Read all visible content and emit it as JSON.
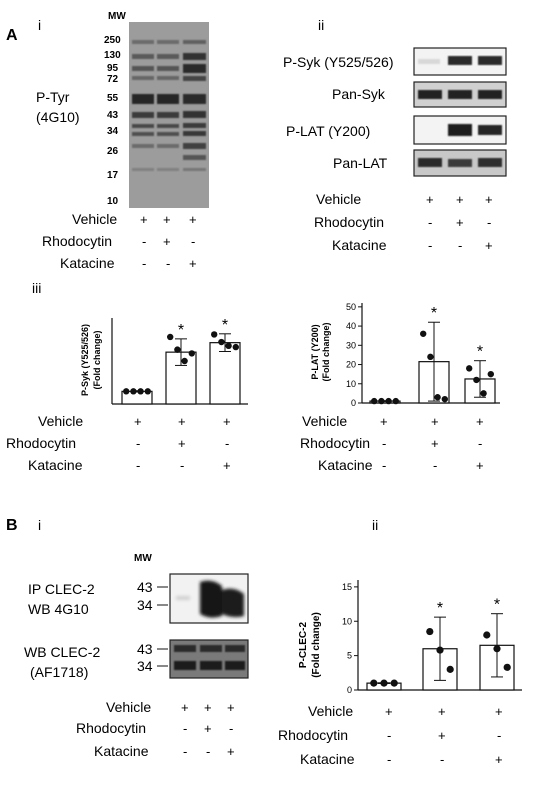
{
  "panelA": {
    "label": "A",
    "i": {
      "numeral": "i",
      "mw_title": "MW",
      "mw_markers": [
        "250",
        "130",
        "95",
        "72",
        "55",
        "43",
        "34",
        "26",
        "17",
        "10"
      ],
      "blot_label_1": "P-Tyr",
      "blot_label_2": "(4G10)",
      "conditions": [
        {
          "name": "Vehicle",
          "signs": [
            "+",
            "+",
            "+"
          ]
        },
        {
          "name": "Rhodocytin",
          "signs": [
            "-",
            "+",
            "-"
          ]
        },
        {
          "name": "Katacine",
          "signs": [
            "-",
            "-",
            "+"
          ]
        }
      ]
    },
    "ii": {
      "numeral": "ii",
      "blots": [
        "P-Syk (Y525/526)",
        "Pan-Syk",
        "P-LAT (Y200)",
        "Pan-LAT"
      ],
      "conditions": [
        {
          "name": "Vehicle",
          "signs": [
            "+",
            "+",
            "+"
          ]
        },
        {
          "name": "Rhodocytin",
          "signs": [
            "-",
            "+",
            "-"
          ]
        },
        {
          "name": "Katacine",
          "signs": [
            "-",
            "-",
            "+"
          ]
        }
      ]
    },
    "iii": {
      "numeral": "iii",
      "conditions": [
        {
          "name": "Vehicle",
          "signs": [
            "+",
            "+",
            "+"
          ]
        },
        {
          "name": "Rhodocytin",
          "signs": [
            "-",
            "+",
            "-"
          ]
        },
        {
          "name": "Katacine",
          "signs": [
            "-",
            "-",
            "+"
          ]
        }
      ]
    },
    "iv": {
      "conditions": [
        {
          "name": "Vehicle",
          "signs": [
            "+",
            "+",
            "+"
          ]
        },
        {
          "name": "Rhodocytin",
          "signs": [
            "-",
            "+",
            "-"
          ]
        },
        {
          "name": "Katacine",
          "signs": [
            "-",
            "-",
            "+"
          ]
        }
      ]
    }
  },
  "panelB": {
    "label": "B",
    "i": {
      "numeral": "i",
      "mw_title": "MW",
      "blot1_label_1": "IP CLEC-2",
      "blot1_label_2": "WB 4G10",
      "blot2_label_1": "WB CLEC-2",
      "blot2_label_2": "(AF1718)",
      "markers_top": [
        "43",
        "34"
      ],
      "markers_bottom": [
        "43",
        "34"
      ],
      "conditions": [
        {
          "name": "Vehicle",
          "signs": [
            "+",
            "+",
            "+"
          ]
        },
        {
          "name": "Rhodocytin",
          "signs": [
            "-",
            "+",
            "-"
          ]
        },
        {
          "name": "Katacine",
          "signs": [
            "-",
            "-",
            "+"
          ]
        }
      ]
    },
    "ii": {
      "numeral": "ii",
      "conditions": [
        {
          "name": "Vehicle",
          "signs": [
            "+",
            "+",
            "+"
          ]
        },
        {
          "name": "Rhodocytin",
          "signs": [
            "-",
            "+",
            "-"
          ]
        },
        {
          "name": "Katacine",
          "signs": [
            "-",
            "-",
            "+"
          ]
        }
      ]
    }
  },
  "chart_data": [
    {
      "type": "bar",
      "categories": [
        "Vehicle",
        "Rhodocytin",
        "Katacine"
      ],
      "values": [
        1.0,
        4.1,
        4.85
      ],
      "errors": [
        0.05,
        1.05,
        0.7
      ],
      "points": [
        [
          1.0,
          1.0,
          1.0,
          1.0
        ],
        [
          5.3,
          4.3,
          3.4,
          4.0
        ],
        [
          5.5,
          4.9,
          4.6,
          4.5
        ]
      ],
      "significance": [
        "",
        "*",
        "*"
      ],
      "ylabel_1": "P-Syk (Y525/526)",
      "ylabel_2": "(Fold change)",
      "yticks": [],
      "ylim": [
        0,
        6.8
      ],
      "grid": false,
      "legend": "none"
    },
    {
      "type": "bar",
      "categories": [
        "Vehicle",
        "Rhodocytin",
        "Katacine"
      ],
      "values": [
        1.0,
        21.5,
        12.5
      ],
      "errors": [
        0.2,
        20.5,
        9.5
      ],
      "points": [
        [
          1.0,
          1.0,
          1.0,
          1.0
        ],
        [
          36.0,
          24.0,
          3.0,
          2.0
        ],
        [
          18.0,
          12.0,
          5.0,
          15.0
        ]
      ],
      "significance": [
        "",
        "*",
        "*"
      ],
      "ylabel_1": "P-LAT (Y200)",
      "ylabel_2": "(Fold change)",
      "yticks": [
        "0",
        "10",
        "20",
        "30",
        "40",
        "50"
      ],
      "ylim": [
        0,
        52
      ],
      "grid": false,
      "legend": "none"
    },
    {
      "type": "bar",
      "categories": [
        "Vehicle",
        "Rhodocytin",
        "Katacine"
      ],
      "values": [
        1.0,
        6.0,
        6.5
      ],
      "errors": [
        0.05,
        4.6,
        4.6
      ],
      "points": [
        [
          1.0,
          1.0,
          1.0
        ],
        [
          8.5,
          5.8,
          3.0
        ],
        [
          8.0,
          6.0,
          3.3
        ]
      ],
      "significance": [
        "",
        "*",
        "*"
      ],
      "ylabel_1": "P-CLEC-2",
      "ylabel_2": "(Fold change)",
      "yticks": [
        "0",
        "5",
        "10",
        "15"
      ],
      "ylim": [
        0,
        16
      ],
      "grid": false,
      "legend": "none"
    }
  ]
}
